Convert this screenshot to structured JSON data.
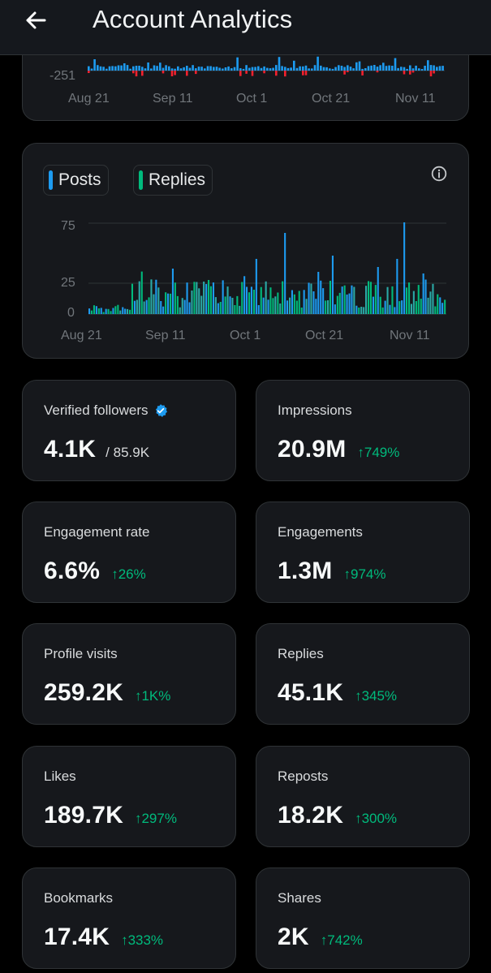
{
  "header": {
    "title": "Account Analytics"
  },
  "top_chart": {
    "y_ticks": [
      "-251"
    ],
    "x_ticks": [
      "Aug 21",
      "Sep 11",
      "Oct 1",
      "Oct 21",
      "Nov 11"
    ]
  },
  "activity_chart": {
    "legend": [
      {
        "label": "Posts",
        "color": "#1d9bf0"
      },
      {
        "label": "Replies",
        "color": "#00ba7c"
      }
    ],
    "y_ticks": [
      "75",
      "25",
      "0"
    ],
    "x_ticks": [
      "Aug 21",
      "Sep 11",
      "Oct 1",
      "Oct 21",
      "Nov 11"
    ]
  },
  "stats": [
    {
      "label": "Verified followers",
      "value": "4.1K",
      "sub": "/ 85.9K",
      "delta": ""
    },
    {
      "label": "Impressions",
      "value": "20.9M",
      "sub": "",
      "delta": "↑749%"
    },
    {
      "label": "Engagement rate",
      "value": "6.6%",
      "sub": "",
      "delta": "↑26%"
    },
    {
      "label": "Engagements",
      "value": "1.3M",
      "sub": "",
      "delta": "↑974%"
    },
    {
      "label": "Profile visits",
      "value": "259.2K",
      "sub": "",
      "delta": "↑1K%"
    },
    {
      "label": "Replies",
      "value": "45.1K",
      "sub": "",
      "delta": "↑345%"
    },
    {
      "label": "Likes",
      "value": "189.7K",
      "sub": "",
      "delta": "↑297%"
    },
    {
      "label": "Reposts",
      "value": "18.2K",
      "sub": "",
      "delta": "↑300%"
    },
    {
      "label": "Bookmarks",
      "value": "17.4K",
      "sub": "",
      "delta": "↑333%"
    },
    {
      "label": "Shares",
      "value": "2K",
      "sub": "",
      "delta": "↑742%"
    }
  ],
  "colors": {
    "positive": "#00ba7c",
    "negative": "#f4212e",
    "posts": "#1d9bf0",
    "replies": "#00ba7c",
    "verified": "#1d9bf0"
  }
}
